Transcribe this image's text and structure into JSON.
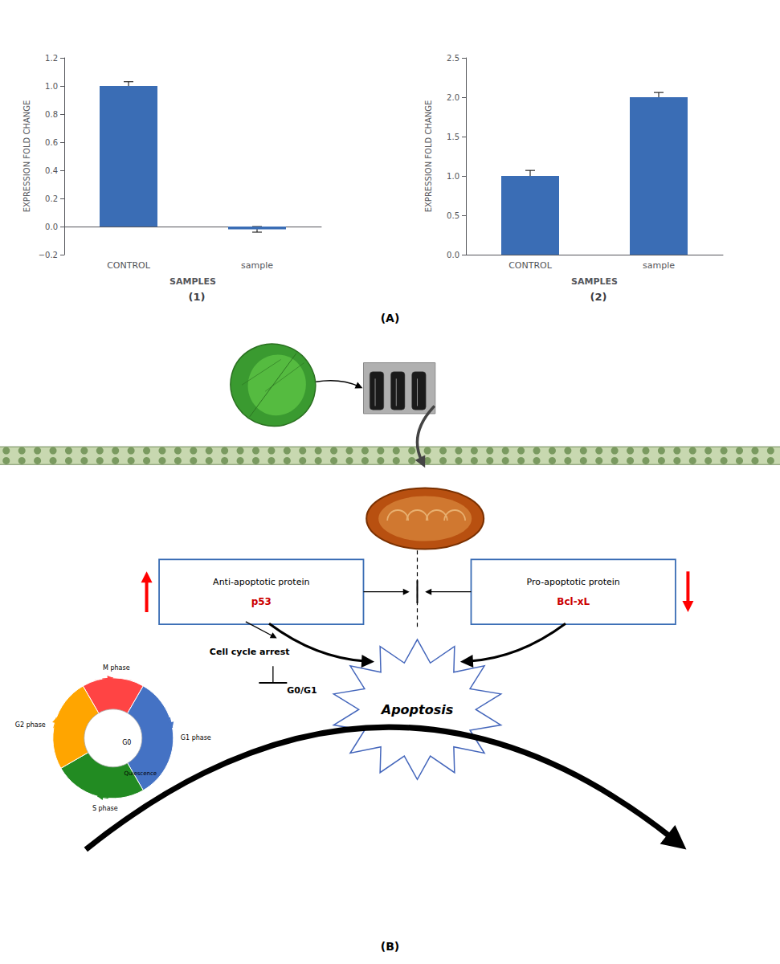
{
  "chart_data": [
    {
      "type": "bar",
      "title": "(1)",
      "xlabel": "SAMPLES",
      "ylabel": "EXPRESSION FOLD CHANGE",
      "categories": [
        "CONTROL",
        "sample"
      ],
      "values": [
        1.0,
        -0.02
      ],
      "errors": [
        0.03,
        0.02
      ],
      "color": "#3A6DB5",
      "ylim": [
        -0.2,
        1.2
      ],
      "yticks": [
        {
          "value": -0.2,
          "label": "−0.2"
        },
        {
          "value": 0,
          "label": "0.0"
        },
        0.2,
        0.4,
        0.6,
        0.8,
        {
          "value": 1,
          "label": "1.0"
        },
        1.2
      ],
      "grid": false
    },
    {
      "type": "bar",
      "title": "(2)",
      "xlabel": "SAMPLES",
      "ylabel": "EXPRESSION FOLD CHANGE",
      "categories": [
        "CONTROL",
        "sample"
      ],
      "values": [
        1.0,
        2.0
      ],
      "errors": [
        0.07,
        0.06
      ],
      "color": "#3A6DB5",
      "ylim": [
        0,
        2.5
      ],
      "yticks": [
        {
          "value": 0,
          "label": "0.0"
        },
        0.5,
        {
          "value": 1,
          "label": "1.0"
        },
        1.5,
        {
          "value": 2,
          "label": "2.0"
        },
        2.5
      ],
      "grid": false
    },
    {
      "type": "diagram",
      "annotations": [
        "(A)",
        "Anti-apoptotic protein",
        "p53",
        "Pro-apoptotic protein",
        "Bcl-xL",
        "Apoptosis",
        "Cell cycle arrest",
        "G0/G1",
        "M phase",
        "G1 phase",
        "G2 phase",
        "S phase",
        "G0",
        "Quiescence",
        "(B)"
      ]
    }
  ]
}
